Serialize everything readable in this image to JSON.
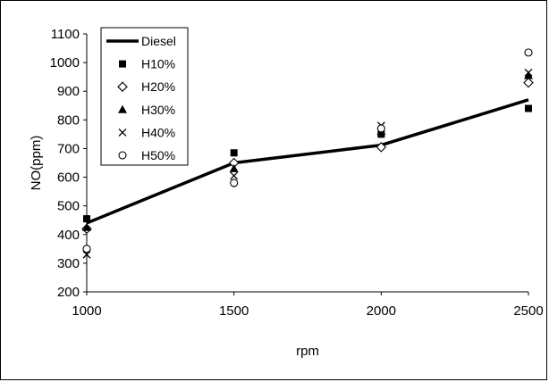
{
  "chart_data": {
    "type": "scatter",
    "title": "",
    "xlabel": "rpm",
    "ylabel": "NO(ppm)",
    "x": [
      1000,
      1500,
      2000,
      2500
    ],
    "xlim": [
      1000,
      2500
    ],
    "ylim": [
      200,
      1100
    ],
    "xticks": [
      "1000",
      "1500",
      "2000",
      "2500"
    ],
    "yticks": [
      "200",
      "300",
      "400",
      "500",
      "600",
      "700",
      "800",
      "900",
      "1000",
      "1100"
    ],
    "grid": false,
    "legend_position": "top-left",
    "series": [
      {
        "name": "Diesel",
        "style": "line",
        "color": "#000000",
        "values": [
          440,
          650,
          712,
          870
        ]
      },
      {
        "name": "H10%",
        "style": "marker",
        "marker": "square",
        "color": "#000000",
        "values": [
          455,
          685,
          750,
          840
        ]
      },
      {
        "name": "H20%",
        "style": "marker",
        "marker": "diamond",
        "color": "#000000",
        "values": [
          420,
          650,
          705,
          930
        ]
      },
      {
        "name": "H30%",
        "style": "marker",
        "marker": "triangle",
        "color": "#000000",
        "values": [
          425,
          630,
          760,
          955
        ]
      },
      {
        "name": "H40%",
        "style": "marker",
        "marker": "x",
        "color": "#000000",
        "values": [
          330,
          605,
          780,
          965
        ]
      },
      {
        "name": "H50%",
        "style": "marker",
        "marker": "circle",
        "color": "#000000",
        "values": [
          350,
          580,
          770,
          1035
        ]
      }
    ]
  }
}
